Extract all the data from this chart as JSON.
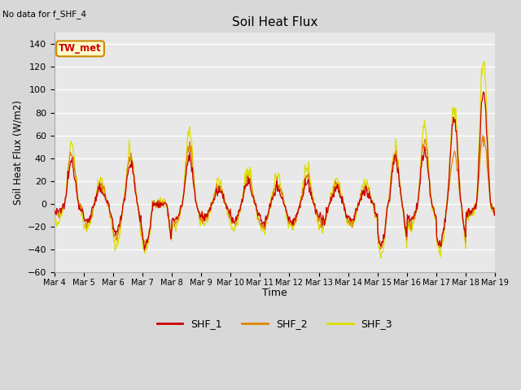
{
  "title": "Soil Heat Flux",
  "subtitle": "No data for f_SHF_4",
  "ylabel": "Soil Heat Flux (W/m2)",
  "xlabel": "Time",
  "annotation": "TW_met",
  "ylim": [
    -60,
    150
  ],
  "yticks": [
    -60,
    -40,
    -20,
    0,
    20,
    40,
    60,
    80,
    100,
    120,
    140
  ],
  "xtick_labels": [
    "Mar 4",
    "Mar 5",
    "Mar 6",
    "Mar 7",
    "Mar 8",
    "Mar 9",
    "Mar 10",
    "Mar 11",
    "Mar 12",
    "Mar 13",
    "Mar 14",
    "Mar 15",
    "Mar 16",
    "Mar 17",
    "Mar 18",
    "Mar 19"
  ],
  "colors": {
    "SHF_1": "#cc0000",
    "SHF_2": "#dd8800",
    "SHF_3": "#dddd00",
    "background": "#e8e8e8",
    "grid": "#ffffff",
    "annotation_bg": "#ffffcc",
    "annotation_border": "#cc8800"
  },
  "legend_entries": [
    "SHF_1",
    "SHF_2",
    "SHF_3"
  ]
}
